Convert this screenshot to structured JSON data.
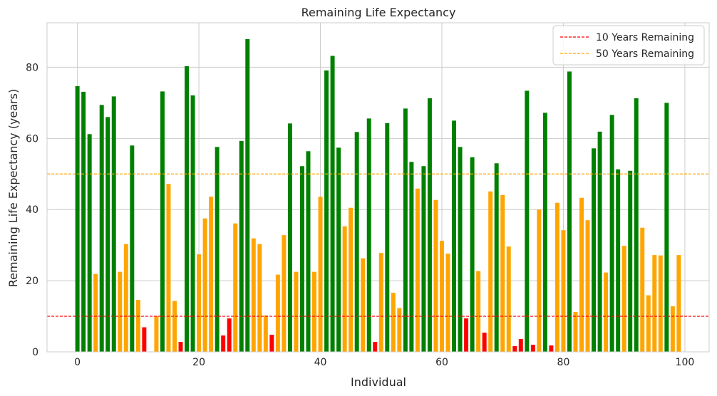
{
  "chart_data": {
    "type": "bar",
    "title": "Remaining Life Expectancy",
    "xlabel": "Individual",
    "ylabel": "Remaining Life Expectancy (years)",
    "xlim": [
      -5,
      104
    ],
    "ylim": [
      0,
      92.5
    ],
    "xticks": [
      "0",
      "20",
      "40",
      "60",
      "80",
      "100"
    ],
    "yticks": [
      "0",
      "20",
      "40",
      "60",
      "80"
    ],
    "grid": true,
    "legend_position": "top-right",
    "color_rules": {
      "red": "value below 10",
      "orange": "value between 10 and 50",
      "green": "value above 50"
    },
    "colors": {
      "high": "#008000",
      "mid": "#ffa500",
      "low": "#ff0000",
      "line10": "#ff0000",
      "line50": "#ffa500",
      "grid": "#cccccc",
      "frame": "#cccccc"
    },
    "reference_lines": [
      {
        "label": "10 Years Remaining",
        "value": 10,
        "color": "#ff0000"
      },
      {
        "label": "50 Years Remaining",
        "value": 50,
        "color": "#ffa500"
      }
    ],
    "x": [
      0,
      1,
      2,
      3,
      4,
      5,
      6,
      7,
      8,
      9,
      10,
      11,
      12,
      13,
      14,
      15,
      16,
      17,
      18,
      19,
      20,
      21,
      22,
      23,
      24,
      25,
      26,
      27,
      28,
      29,
      30,
      31,
      32,
      33,
      34,
      35,
      36,
      37,
      38,
      39,
      40,
      41,
      42,
      43,
      44,
      45,
      46,
      47,
      48,
      49,
      50,
      51,
      52,
      53,
      54,
      55,
      56,
      57,
      58,
      59,
      60,
      61,
      62,
      63,
      64,
      65,
      66,
      67,
      68,
      69,
      70,
      71,
      72,
      73,
      74,
      75,
      76,
      77,
      78,
      79,
      80,
      81,
      82,
      83,
      84,
      85,
      86,
      87,
      88,
      89,
      90,
      91,
      92,
      93,
      94,
      95,
      96,
      97,
      98,
      99
    ],
    "values": [
      74.7,
      73.1,
      61.2,
      21.9,
      69.4,
      66.0,
      71.8,
      22.5,
      30.3,
      58.0,
      14.6,
      6.9,
      0,
      10.0,
      73.2,
      47.2,
      14.3,
      2.8,
      80.3,
      72.1,
      27.4,
      37.5,
      43.6,
      57.6,
      4.6,
      9.4,
      36.1,
      59.3,
      87.9,
      31.9,
      30.3,
      10.2,
      4.8,
      21.7,
      32.8,
      64.2,
      22.5,
      52.2,
      56.4,
      22.5,
      43.6,
      79.1,
      83.2,
      57.4,
      35.3,
      40.5,
      61.8,
      26.3,
      65.6,
      2.8,
      27.8,
      64.3,
      16.6,
      12.3,
      68.4,
      53.4,
      45.9,
      52.2,
      71.3,
      42.7,
      31.2,
      27.6,
      65.0,
      57.6,
      9.4,
      54.7,
      22.7,
      5.4,
      45.1,
      53.0,
      44.1,
      29.6,
      1.6,
      3.6,
      73.4,
      2.0,
      40.0,
      67.2,
      1.8,
      41.9,
      34.2,
      78.8,
      11.2,
      43.3,
      37.0,
      57.2,
      61.9,
      22.3,
      66.6,
      51.3,
      29.8,
      50.9,
      71.3,
      34.9,
      15.9,
      27.2,
      27.1,
      70.0,
      12.8,
      27.2
    ]
  }
}
